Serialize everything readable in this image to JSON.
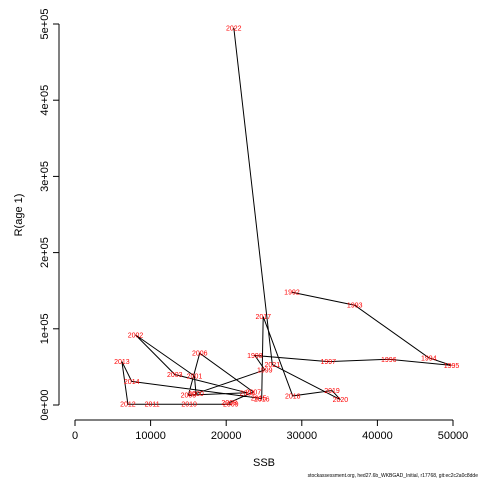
{
  "chart_data": {
    "type": "line",
    "xlabel": "SSB",
    "ylabel": "R(age 1)",
    "xlim": [
      0,
      50000
    ],
    "ylim": [
      0,
      500000
    ],
    "x_ticks": [
      {
        "value": 0,
        "label": "0"
      },
      {
        "value": 10000,
        "label": "10000"
      },
      {
        "value": 20000,
        "label": "20000"
      },
      {
        "value": 30000,
        "label": "30000"
      },
      {
        "value": 40000,
        "label": "40000"
      },
      {
        "value": 50000,
        "label": "50000"
      }
    ],
    "y_ticks": [
      {
        "value": 0,
        "label": "0e+00"
      },
      {
        "value": 100000,
        "label": "1e+05"
      },
      {
        "value": 200000,
        "label": "2e+05"
      },
      {
        "value": 300000,
        "label": "3e+05"
      },
      {
        "value": 400000,
        "label": "4e+05"
      },
      {
        "value": 500000,
        "label": "5e+05"
      }
    ],
    "line_color": "#000000",
    "label_color": "#ff0000",
    "grid": false,
    "points": [
      {
        "year": "1992",
        "ssb": 28700,
        "r": 148000
      },
      {
        "year": "1993",
        "ssb": 37000,
        "r": 131000
      },
      {
        "year": "1994",
        "ssb": 46800,
        "r": 62000
      },
      {
        "year": "1995",
        "ssb": 49800,
        "r": 52000
      },
      {
        "year": "1996",
        "ssb": 41500,
        "r": 60000
      },
      {
        "year": "1997",
        "ssb": 33500,
        "r": 57000
      },
      {
        "year": "1998",
        "ssb": 23800,
        "r": 65000
      },
      {
        "year": "1999",
        "ssb": 25100,
        "r": 46000
      },
      {
        "year": "2000",
        "ssb": 16000,
        "r": 15000
      },
      {
        "year": "2001",
        "ssb": 15800,
        "r": 38000
      },
      {
        "year": "2002",
        "ssb": 8000,
        "r": 92000
      },
      {
        "year": "2003",
        "ssb": 13200,
        "r": 40000
      },
      {
        "year": "2004",
        "ssb": 22800,
        "r": 16000
      },
      {
        "year": "2005",
        "ssb": 15000,
        "r": 13000
      },
      {
        "year": "2006",
        "ssb": 16500,
        "r": 68000
      },
      {
        "year": "2007",
        "ssb": 23600,
        "r": 17000
      },
      {
        "year": "2008",
        "ssb": 20400,
        "r": 3000
      },
      {
        "year": "2009",
        "ssb": 20600,
        "r": 1000
      },
      {
        "year": "2010",
        "ssb": 15100,
        "r": 1000
      },
      {
        "year": "2011",
        "ssb": 10200,
        "r": 1000
      },
      {
        "year": "2012",
        "ssb": 7000,
        "r": 1000
      },
      {
        "year": "2013",
        "ssb": 6200,
        "r": 57000
      },
      {
        "year": "2014",
        "ssb": 7500,
        "r": 31000
      },
      {
        "year": "2015",
        "ssb": 24300,
        "r": 9000
      },
      {
        "year": "2016",
        "ssb": 24700,
        "r": 8000
      },
      {
        "year": "2017",
        "ssb": 24900,
        "r": 116000
      },
      {
        "year": "2018",
        "ssb": 28800,
        "r": 12000
      },
      {
        "year": "2019",
        "ssb": 34000,
        "r": 19000
      },
      {
        "year": "2020",
        "ssb": 35100,
        "r": 7000
      },
      {
        "year": "2021",
        "ssb": 26100,
        "r": 53000
      },
      {
        "year": "2022",
        "ssb": 21000,
        "r": 495000
      }
    ]
  },
  "footer": {
    "text": "stockassessment.org, hed27.6b_WKBGAD_Initial, r17768, git:ec2c2a0c8dde"
  }
}
